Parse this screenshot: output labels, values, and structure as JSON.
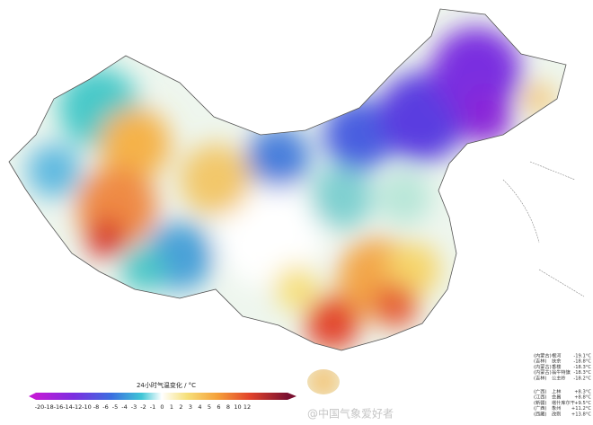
{
  "legend": {
    "title": "24小时气温变化 / °C",
    "ticks": [
      -20,
      -18,
      -16,
      -14,
      -12,
      -10,
      -8,
      -6,
      -5,
      -4,
      -3,
      -2,
      -1,
      0,
      1,
      2,
      3,
      4,
      5,
      6,
      8,
      10,
      12
    ]
  },
  "stations_cold": [
    {
      "region": "(内蒙古)",
      "name": "根河",
      "value": "-19.1°C"
    },
    {
      "region": "(吉林)",
      "name": "扶余",
      "value": "-18.8°C"
    },
    {
      "region": "(内蒙古)",
      "name": "香楼",
      "value": "-18.3°C"
    },
    {
      "region": "(内蒙古)",
      "name": "翁牛特旗",
      "value": "-18.3°C"
    },
    {
      "region": "(吉林)",
      "name": "公主岭",
      "value": "-18.2°C"
    }
  ],
  "stations_warm": [
    {
      "region": "(广西)",
      "name": "上林",
      "value": "+8.3°C"
    },
    {
      "region": "(江西)",
      "name": "会昌",
      "value": "+8.8°C"
    },
    {
      "region": "(新疆)",
      "name": "塔什库尔干",
      "value": "+9.5°C"
    },
    {
      "region": "(广西)",
      "name": "象州",
      "value": "+11.2°C"
    },
    {
      "region": "(西藏)",
      "name": "改则",
      "value": "+13.8°C"
    }
  ],
  "watermark": "@中国气象爱好者"
}
